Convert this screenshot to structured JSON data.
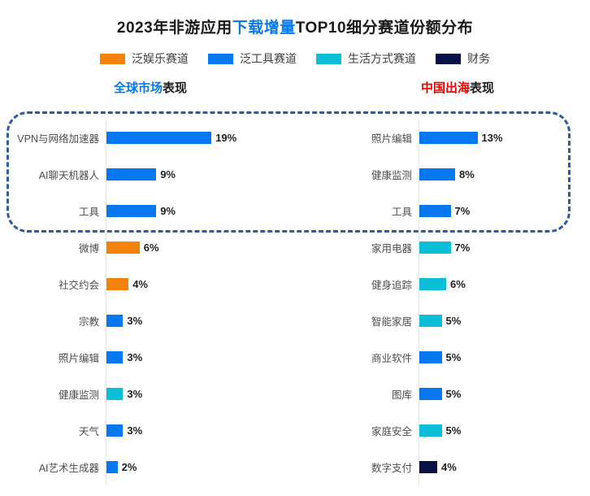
{
  "title": {
    "prefix": "2023年非游应用",
    "highlight": "下载增量",
    "suffix": "TOP10细分赛道份额分布"
  },
  "headers": {
    "left": {
      "highlight": "全球市场",
      "suffix": "表现"
    },
    "right": {
      "highlight": "中国出海",
      "suffix": "表现"
    }
  },
  "legend": {
    "items": [
      {
        "label": "泛娱乐赛道",
        "color": "#f5820b"
      },
      {
        "label": "泛工具赛道",
        "color": "#0778f0"
      },
      {
        "label": "生活方式赛道",
        "color": "#0cbfd6"
      },
      {
        "label": "财务",
        "color": "#0a1145"
      }
    ]
  },
  "colors": {
    "title_highlight": "#0778f0",
    "left_header_highlight": "#0778f0",
    "right_header_highlight": "#ed0000",
    "dashed_box": "#2d5d9f",
    "axis_line": "#e4e4e4"
  },
  "annotation": {
    "top3_box_note": "虚线框标注两列各自的TOP3赛道"
  },
  "chart_data": [
    {
      "type": "bar",
      "orientation": "horizontal",
      "title": "全球市场表现",
      "unit": "%",
      "legend_position": "top",
      "grid": false,
      "points": [
        {
          "label": "VPN与网络加速器",
          "value": 19,
          "series": "泛工具赛道"
        },
        {
          "label": "AI聊天机器人",
          "value": 9,
          "series": "泛工具赛道"
        },
        {
          "label": "工具",
          "value": 9,
          "series": "泛工具赛道"
        },
        {
          "label": "微博",
          "value": 6,
          "series": "泛娱乐赛道"
        },
        {
          "label": "社交约会",
          "value": 4,
          "series": "泛娱乐赛道"
        },
        {
          "label": "宗教",
          "value": 3,
          "series": "泛工具赛道"
        },
        {
          "label": "照片编辑",
          "value": 3,
          "series": "泛工具赛道"
        },
        {
          "label": "健康监测",
          "value": 3,
          "series": "生活方式赛道"
        },
        {
          "label": "天气",
          "value": 3,
          "series": "泛工具赛道"
        },
        {
          "label": "AI艺术生成器",
          "value": 2,
          "series": "泛工具赛道"
        }
      ]
    },
    {
      "type": "bar",
      "orientation": "horizontal",
      "title": "中国出海表现",
      "unit": "%",
      "legend_position": "top",
      "grid": false,
      "points": [
        {
          "label": "照片编辑",
          "value": 13,
          "series": "泛工具赛道"
        },
        {
          "label": "健康监测",
          "value": 8,
          "series": "泛工具赛道"
        },
        {
          "label": "工具",
          "value": 7,
          "series": "泛工具赛道"
        },
        {
          "label": "家用电器",
          "value": 7,
          "series": "生活方式赛道"
        },
        {
          "label": "健身追踪",
          "value": 6,
          "series": "生活方式赛道"
        },
        {
          "label": "智能家居",
          "value": 5,
          "series": "生活方式赛道"
        },
        {
          "label": "商业软件",
          "value": 5,
          "series": "泛工具赛道"
        },
        {
          "label": "图库",
          "value": 5,
          "series": "泛工具赛道"
        },
        {
          "label": "家庭安全",
          "value": 5,
          "series": "生活方式赛道"
        },
        {
          "label": "数字支付",
          "value": 4,
          "series": "财务"
        }
      ]
    }
  ]
}
